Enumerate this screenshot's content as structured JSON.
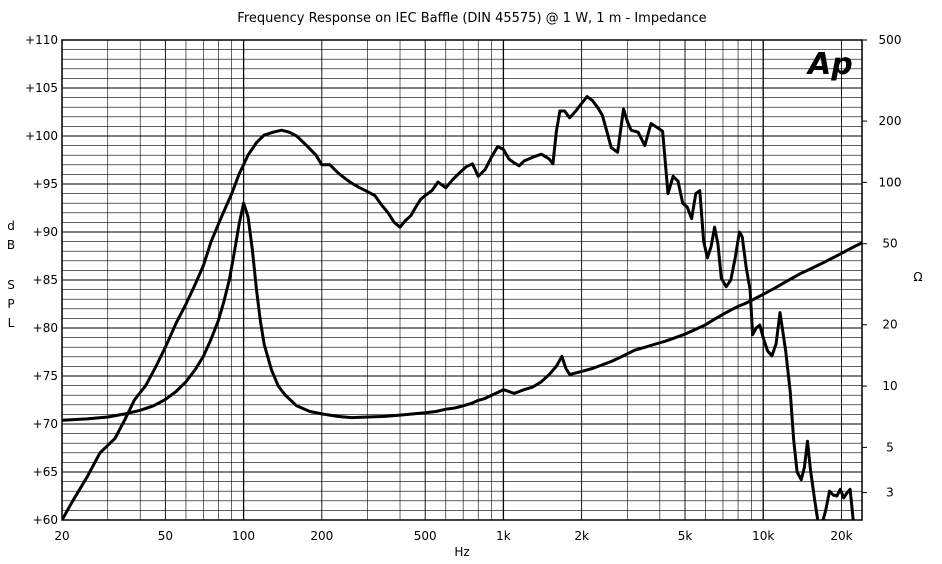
{
  "chart_data": {
    "type": "line",
    "title": "Frequency Response on IEC Baffle (DIN 45575) @ 1 W, 1 m - Impedance",
    "xlabel": "Hz",
    "ylabel_left": [
      "d",
      "B",
      "S",
      "P",
      "L"
    ],
    "ylabel_right": "Ω",
    "logo": "Ap",
    "x_scale": "log",
    "xlim": [
      20,
      24000
    ],
    "ylim_left": [
      60,
      110
    ],
    "ylim_right": [
      2.2,
      500
    ],
    "y_right_scale": "log",
    "grid": true,
    "x_ticks": [
      {
        "value": 20,
        "label": "20"
      },
      {
        "value": 50,
        "label": "50"
      },
      {
        "value": 100,
        "label": "100"
      },
      {
        "value": 200,
        "label": "200"
      },
      {
        "value": 500,
        "label": "500"
      },
      {
        "value": 1000,
        "label": "1k"
      },
      {
        "value": 2000,
        "label": "2k"
      },
      {
        "value": 5000,
        "label": "5k"
      },
      {
        "value": 10000,
        "label": "10k"
      },
      {
        "value": 20000,
        "label": "20k"
      }
    ],
    "y_left_ticks": [
      {
        "value": 110,
        "label": "+110"
      },
      {
        "value": 105,
        "label": "+105"
      },
      {
        "value": 100,
        "label": "+100"
      },
      {
        "value": 95,
        "label": "+95"
      },
      {
        "value": 90,
        "label": "+90"
      },
      {
        "value": 85,
        "label": "+85"
      },
      {
        "value": 80,
        "label": "+80"
      },
      {
        "value": 75,
        "label": "+75"
      },
      {
        "value": 70,
        "label": "+70"
      },
      {
        "value": 65,
        "label": "+65"
      },
      {
        "value": 60,
        "label": "+60"
      }
    ],
    "y_right_ticks": [
      {
        "value": 500,
        "label": "500"
      },
      {
        "value": 200,
        "label": "200"
      },
      {
        "value": 100,
        "label": "100"
      },
      {
        "value": 50,
        "label": "50"
      },
      {
        "value": 20,
        "label": "20"
      },
      {
        "value": 10,
        "label": "10"
      },
      {
        "value": 5,
        "label": "5"
      },
      {
        "value": 3,
        "label": "3"
      }
    ],
    "series": [
      {
        "axis": "left",
        "points": [
          [
            20,
            60
          ],
          [
            22,
            62
          ],
          [
            25,
            64.5
          ],
          [
            28,
            67
          ],
          [
            32,
            68.5
          ],
          [
            35,
            70.5
          ],
          [
            38,
            72.5
          ],
          [
            42,
            74
          ],
          [
            46,
            76
          ],
          [
            50,
            78
          ],
          [
            55,
            80.5
          ],
          [
            60,
            82.5
          ],
          [
            65,
            84.5
          ],
          [
            70,
            86.5
          ],
          [
            75,
            89
          ],
          [
            82,
            91.5
          ],
          [
            90,
            94
          ],
          [
            96,
            96
          ],
          [
            104,
            98
          ],
          [
            112,
            99.3
          ],
          [
            120,
            100.1
          ],
          [
            130,
            100.4
          ],
          [
            140,
            100.6
          ],
          [
            150,
            100.4
          ],
          [
            160,
            100
          ],
          [
            175,
            99
          ],
          [
            190,
            98
          ],
          [
            200,
            97
          ],
          [
            215,
            97
          ],
          [
            230,
            96.2
          ],
          [
            245,
            95.6
          ],
          [
            260,
            95.1
          ],
          [
            280,
            94.6
          ],
          [
            300,
            94.2
          ],
          [
            320,
            93.8
          ],
          [
            340,
            92.8
          ],
          [
            360,
            92
          ],
          [
            380,
            91
          ],
          [
            400,
            90.5
          ],
          [
            420,
            91.2
          ],
          [
            440,
            91.7
          ],
          [
            460,
            92.6
          ],
          [
            480,
            93.4
          ],
          [
            500,
            93.8
          ],
          [
            530,
            94.3
          ],
          [
            560,
            95.2
          ],
          [
            600,
            94.6
          ],
          [
            640,
            95.5
          ],
          [
            680,
            96.2
          ],
          [
            720,
            96.8
          ],
          [
            760,
            97.1
          ],
          [
            800,
            95.8
          ],
          [
            850,
            96.5
          ],
          [
            900,
            97.8
          ],
          [
            950,
            98.9
          ],
          [
            1000,
            98.6
          ],
          [
            1050,
            97.6
          ],
          [
            1100,
            97.2
          ],
          [
            1150,
            96.9
          ],
          [
            1200,
            97.4
          ],
          [
            1300,
            97.8
          ],
          [
            1400,
            98.1
          ],
          [
            1500,
            97.6
          ],
          [
            1550,
            97.1
          ],
          [
            1600,
            100.5
          ],
          [
            1650,
            102.6
          ],
          [
            1720,
            102.6
          ],
          [
            1800,
            101.9
          ],
          [
            1900,
            102.6
          ],
          [
            2000,
            103.4
          ],
          [
            2100,
            104.1
          ],
          [
            2200,
            103.7
          ],
          [
            2300,
            103
          ],
          [
            2400,
            102.2
          ],
          [
            2500,
            100.5
          ],
          [
            2600,
            98.8
          ],
          [
            2750,
            98.3
          ],
          [
            2900,
            102.8
          ],
          [
            3000,
            101.5
          ],
          [
            3100,
            100.6
          ],
          [
            3300,
            100.4
          ],
          [
            3500,
            99
          ],
          [
            3700,
            101.3
          ],
          [
            3900,
            100.9
          ],
          [
            4100,
            100.5
          ],
          [
            4300,
            94
          ],
          [
            4500,
            95.8
          ],
          [
            4700,
            95.3
          ],
          [
            4900,
            93
          ],
          [
            5100,
            92.6
          ],
          [
            5300,
            91.4
          ],
          [
            5500,
            94
          ],
          [
            5700,
            94.3
          ],
          [
            5900,
            89
          ],
          [
            6100,
            87.3
          ],
          [
            6300,
            88.5
          ],
          [
            6500,
            90.5
          ],
          [
            6700,
            88.7
          ],
          [
            6900,
            85.2
          ],
          [
            7200,
            84.3
          ],
          [
            7500,
            85
          ],
          [
            7800,
            87.3
          ],
          [
            8100,
            90
          ],
          [
            8300,
            89.5
          ],
          [
            8600,
            86.3
          ],
          [
            8900,
            84
          ],
          [
            9100,
            79.3
          ],
          [
            9400,
            80
          ],
          [
            9700,
            80.3
          ],
          [
            10000,
            79
          ],
          [
            10400,
            77.6
          ],
          [
            10800,
            77.1
          ],
          [
            11200,
            78.3
          ],
          [
            11600,
            81.6
          ],
          [
            12200,
            77.6
          ],
          [
            12700,
            73.4
          ],
          [
            13100,
            68.3
          ],
          [
            13500,
            65
          ],
          [
            14000,
            64.2
          ],
          [
            14400,
            65.5
          ],
          [
            14800,
            68.2
          ],
          [
            15200,
            65.2
          ],
          [
            15800,
            62
          ],
          [
            16200,
            60
          ],
          [
            16800,
            59.5
          ],
          [
            17400,
            61
          ],
          [
            18000,
            63
          ],
          [
            18600,
            62.6
          ],
          [
            19200,
            62.5
          ],
          [
            19800,
            63.2
          ],
          [
            20400,
            62.3
          ],
          [
            21000,
            62.8
          ],
          [
            21600,
            63.2
          ],
          [
            22200,
            60
          ]
        ]
      },
      {
        "axis": "right",
        "points": [
          [
            20,
            6.8
          ],
          [
            25,
            6.9
          ],
          [
            30,
            7.05
          ],
          [
            35,
            7.3
          ],
          [
            40,
            7.6
          ],
          [
            45,
            8
          ],
          [
            50,
            8.6
          ],
          [
            55,
            9.4
          ],
          [
            60,
            10.5
          ],
          [
            65,
            12
          ],
          [
            70,
            14
          ],
          [
            75,
            17
          ],
          [
            80,
            21
          ],
          [
            84,
            26
          ],
          [
            88,
            33
          ],
          [
            92,
            45
          ],
          [
            96,
            62
          ],
          [
            100,
            79
          ],
          [
            104,
            68
          ],
          [
            108,
            47
          ],
          [
            112,
            30
          ],
          [
            116,
            21
          ],
          [
            120,
            16
          ],
          [
            128,
            12
          ],
          [
            136,
            10
          ],
          [
            145,
            9
          ],
          [
            160,
            8
          ],
          [
            180,
            7.5
          ],
          [
            200,
            7.3
          ],
          [
            230,
            7.1
          ],
          [
            260,
            7
          ],
          [
            300,
            7.05
          ],
          [
            350,
            7.1
          ],
          [
            400,
            7.2
          ],
          [
            450,
            7.3
          ],
          [
            500,
            7.4
          ],
          [
            550,
            7.5
          ],
          [
            600,
            7.7
          ],
          [
            650,
            7.8
          ],
          [
            700,
            8
          ],
          [
            750,
            8.2
          ],
          [
            800,
            8.5
          ],
          [
            850,
            8.7
          ],
          [
            900,
            9
          ],
          [
            950,
            9.3
          ],
          [
            1000,
            9.6
          ],
          [
            1050,
            9.4
          ],
          [
            1100,
            9.2
          ],
          [
            1150,
            9.4
          ],
          [
            1200,
            9.6
          ],
          [
            1300,
            9.9
          ],
          [
            1400,
            10.5
          ],
          [
            1500,
            11.4
          ],
          [
            1600,
            12.5
          ],
          [
            1680,
            14
          ],
          [
            1740,
            12.2
          ],
          [
            1800,
            11.4
          ],
          [
            1900,
            11.6
          ],
          [
            2000,
            11.8
          ],
          [
            2200,
            12.2
          ],
          [
            2400,
            12.7
          ],
          [
            2600,
            13.2
          ],
          [
            2800,
            13.8
          ],
          [
            3000,
            14.4
          ],
          [
            3200,
            15
          ],
          [
            3500,
            15.5
          ],
          [
            3800,
            16
          ],
          [
            4200,
            16.6
          ],
          [
            4600,
            17.3
          ],
          [
            5000,
            18
          ],
          [
            5500,
            19
          ],
          [
            6000,
            20
          ],
          [
            6500,
            21.3
          ],
          [
            7000,
            22.5
          ],
          [
            7500,
            23.6
          ],
          [
            8000,
            24.6
          ],
          [
            8500,
            25.4
          ],
          [
            9000,
            26.3
          ],
          [
            10000,
            28.2
          ],
          [
            11000,
            30.1
          ],
          [
            12000,
            32.1
          ],
          [
            13000,
            34
          ],
          [
            14000,
            35.8
          ],
          [
            15000,
            37.3
          ],
          [
            16000,
            38.8
          ],
          [
            17000,
            40.3
          ],
          [
            18000,
            41.8
          ],
          [
            19000,
            43.3
          ],
          [
            20000,
            44.8
          ],
          [
            21000,
            46.3
          ],
          [
            22000,
            47.8
          ],
          [
            23000,
            49.2
          ],
          [
            24000,
            50.5
          ]
        ]
      }
    ]
  }
}
